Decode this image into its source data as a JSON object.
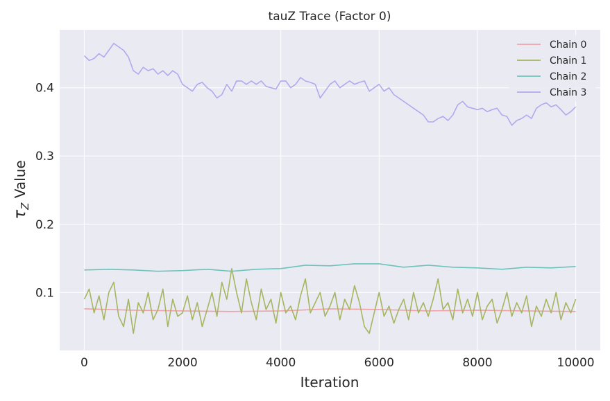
{
  "chart_data": {
    "type": "line",
    "title": "tauZ Trace (Factor 0)",
    "xlabel": "Iteration",
    "ylabel_symbol": "τ",
    "ylabel_subscript": "Z",
    "ylabel_suffix": " Value",
    "xlim": [
      -500,
      10500
    ],
    "ylim": [
      0.015,
      0.485
    ],
    "xticks": [
      0,
      2000,
      4000,
      6000,
      8000,
      10000
    ],
    "yticks": [
      0.1,
      0.2,
      0.3,
      0.4
    ],
    "xtick_labels": [
      "0",
      "2000",
      "4000",
      "6000",
      "8000",
      "10000"
    ],
    "ytick_labels": [
      "0.1",
      "0.2",
      "0.3",
      "0.4"
    ],
    "grid": true,
    "legend_position": "top-right",
    "series": [
      {
        "name": "Chain 0",
        "color": "#f2a0a8",
        "x": [
          0,
          1000,
          2000,
          3000,
          4000,
          5000,
          6000,
          7000,
          8000,
          9000,
          10000
        ],
        "values": [
          0.076,
          0.074,
          0.073,
          0.072,
          0.073,
          0.076,
          0.075,
          0.073,
          0.074,
          0.073,
          0.072
        ]
      },
      {
        "name": "Chain 1",
        "color": "#a5b560",
        "x": [
          0,
          100,
          200,
          300,
          400,
          500,
          600,
          700,
          800,
          900,
          1000,
          1100,
          1200,
          1300,
          1400,
          1500,
          1600,
          1700,
          1800,
          1900,
          2000,
          2100,
          2200,
          2300,
          2400,
          2500,
          2600,
          2700,
          2800,
          2900,
          3000,
          3100,
          3200,
          3300,
          3400,
          3500,
          3600,
          3700,
          3800,
          3900,
          4000,
          4100,
          4200,
          4300,
          4400,
          4500,
          4600,
          4700,
          4800,
          4900,
          5000,
          5100,
          5200,
          5300,
          5400,
          5500,
          5600,
          5700,
          5800,
          5900,
          6000,
          6100,
          6200,
          6300,
          6400,
          6500,
          6600,
          6700,
          6800,
          6900,
          7000,
          7100,
          7200,
          7300,
          7400,
          7500,
          7600,
          7700,
          7800,
          7900,
          8000,
          8100,
          8200,
          8300,
          8400,
          8500,
          8600,
          8700,
          8800,
          8900,
          9000,
          9100,
          9200,
          9300,
          9400,
          9500,
          9600,
          9700,
          9800,
          9900,
          10000
        ],
        "values": [
          0.09,
          0.105,
          0.07,
          0.095,
          0.06,
          0.1,
          0.115,
          0.065,
          0.05,
          0.09,
          0.04,
          0.085,
          0.07,
          0.1,
          0.06,
          0.075,
          0.105,
          0.05,
          0.09,
          0.065,
          0.07,
          0.095,
          0.06,
          0.085,
          0.05,
          0.075,
          0.1,
          0.065,
          0.115,
          0.09,
          0.135,
          0.1,
          0.07,
          0.12,
          0.085,
          0.06,
          0.105,
          0.075,
          0.09,
          0.055,
          0.1,
          0.07,
          0.08,
          0.06,
          0.095,
          0.12,
          0.07,
          0.085,
          0.1,
          0.065,
          0.08,
          0.1,
          0.06,
          0.09,
          0.075,
          0.11,
          0.085,
          0.05,
          0.04,
          0.07,
          0.1,
          0.065,
          0.08,
          0.055,
          0.075,
          0.09,
          0.06,
          0.1,
          0.07,
          0.085,
          0.065,
          0.09,
          0.12,
          0.075,
          0.085,
          0.06,
          0.105,
          0.07,
          0.09,
          0.065,
          0.1,
          0.06,
          0.08,
          0.09,
          0.055,
          0.075,
          0.1,
          0.065,
          0.085,
          0.07,
          0.095,
          0.05,
          0.08,
          0.065,
          0.09,
          0.07,
          0.1,
          0.06,
          0.085,
          0.07,
          0.09
        ]
      },
      {
        "name": "Chain 2",
        "color": "#6cc3bb",
        "x": [
          0,
          500,
          1000,
          1500,
          2000,
          2500,
          3000,
          3500,
          4000,
          4500,
          5000,
          5500,
          6000,
          6500,
          7000,
          7500,
          8000,
          8500,
          9000,
          9500,
          10000
        ],
        "values": [
          0.133,
          0.134,
          0.133,
          0.131,
          0.132,
          0.134,
          0.131,
          0.134,
          0.135,
          0.14,
          0.139,
          0.142,
          0.142,
          0.137,
          0.14,
          0.137,
          0.136,
          0.134,
          0.137,
          0.136,
          0.138
        ]
      },
      {
        "name": "Chain 3",
        "color": "#b4a7ee",
        "x": [
          0,
          100,
          200,
          300,
          400,
          500,
          600,
          700,
          800,
          900,
          1000,
          1100,
          1200,
          1300,
          1400,
          1500,
          1600,
          1700,
          1800,
          1900,
          2000,
          2100,
          2200,
          2300,
          2400,
          2500,
          2600,
          2700,
          2800,
          2900,
          3000,
          3100,
          3200,
          3300,
          3400,
          3500,
          3600,
          3700,
          3800,
          3900,
          4000,
          4100,
          4200,
          4300,
          4400,
          4500,
          4600,
          4700,
          4800,
          4900,
          5000,
          5100,
          5200,
          5300,
          5400,
          5500,
          5600,
          5700,
          5800,
          5900,
          6000,
          6100,
          6200,
          6300,
          6400,
          6500,
          6600,
          6700,
          6800,
          6900,
          7000,
          7100,
          7200,
          7300,
          7400,
          7500,
          7600,
          7700,
          7800,
          7900,
          8000,
          8100,
          8200,
          8300,
          8400,
          8500,
          8600,
          8700,
          8800,
          8900,
          9000,
          9100,
          9200,
          9300,
          9400,
          9500,
          9600,
          9700,
          9800,
          9900,
          10000
        ],
        "values": [
          0.447,
          0.44,
          0.443,
          0.45,
          0.445,
          0.455,
          0.465,
          0.46,
          0.455,
          0.445,
          0.425,
          0.42,
          0.43,
          0.425,
          0.428,
          0.42,
          0.425,
          0.418,
          0.425,
          0.42,
          0.405,
          0.4,
          0.395,
          0.405,
          0.408,
          0.4,
          0.395,
          0.385,
          0.39,
          0.405,
          0.395,
          0.41,
          0.41,
          0.405,
          0.41,
          0.405,
          0.41,
          0.402,
          0.4,
          0.398,
          0.41,
          0.41,
          0.4,
          0.405,
          0.415,
          0.41,
          0.408,
          0.405,
          0.385,
          0.395,
          0.405,
          0.41,
          0.4,
          0.405,
          0.41,
          0.405,
          0.408,
          0.41,
          0.395,
          0.4,
          0.405,
          0.395,
          0.4,
          0.39,
          0.385,
          0.38,
          0.375,
          0.37,
          0.365,
          0.36,
          0.35,
          0.35,
          0.355,
          0.358,
          0.352,
          0.36,
          0.375,
          0.38,
          0.372,
          0.37,
          0.368,
          0.37,
          0.365,
          0.368,
          0.37,
          0.36,
          0.358,
          0.345,
          0.352,
          0.355,
          0.36,
          0.355,
          0.37,
          0.375,
          0.378,
          0.372,
          0.375,
          0.368,
          0.36,
          0.365,
          0.372
        ]
      }
    ]
  }
}
